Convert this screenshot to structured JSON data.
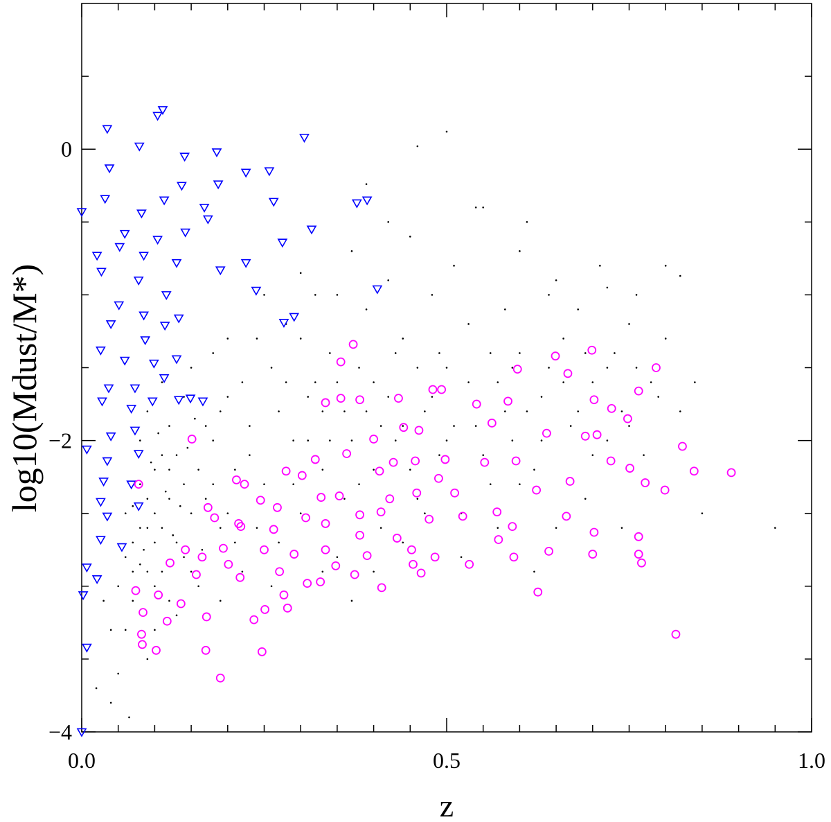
{
  "chart_data": {
    "type": "scatter",
    "xlabel": "z",
    "ylabel": "log10(Mdust/M*)",
    "xlim": [
      0,
      1
    ],
    "ylim": [
      -4,
      1
    ],
    "xticks": [
      {
        "value": 0,
        "label": "0.0"
      },
      0.5,
      {
        "value": 1,
        "label": "1.0"
      }
    ],
    "yticks": [
      {
        "value": -4,
        "label": "−4"
      },
      {
        "value": -2,
        "label": "−2"
      },
      0
    ],
    "xminorticks": [
      0.05,
      0.1,
      0.15,
      0.2,
      0.25,
      0.3,
      0.35,
      0.4,
      0.45,
      0.55,
      0.6,
      0.65,
      0.7,
      0.75,
      0.8,
      0.85,
      0.9,
      0.95
    ],
    "yminorticks": [
      -3.5,
      -3,
      -2.5,
      -1.5,
      -1,
      -0.5,
      0.5
    ],
    "series": [
      {
        "color": "#000000",
        "marker": "dot",
        "x": [
          0.06,
          0.07,
          0.08,
          0.09,
          0.07,
          0.08,
          0.09,
          0.1,
          0.11,
          0.12,
          0.1,
          0.11,
          0.13,
          0.14,
          0.12,
          0.15,
          0.16,
          0.14,
          0.13,
          0.15,
          0.08,
          0.09,
          0.07,
          0.06,
          0.05,
          0.04,
          0.02,
          0.03,
          0.065,
          0.09,
          0.1,
          0.085,
          0.095,
          0.105,
          0.115,
          0.125,
          0.135,
          0.145,
          0.155,
          0.165,
          0.17,
          0.18,
          0.19,
          0.2,
          0.21,
          0.22,
          0.18,
          0.2,
          0.16,
          0.19,
          0.23,
          0.25,
          0.26,
          0.27,
          0.28,
          0.29,
          0.3,
          0.31,
          0.32,
          0.33,
          0.34,
          0.35,
          0.36,
          0.37,
          0.38,
          0.39,
          0.4,
          0.41,
          0.42,
          0.43,
          0.44,
          0.45,
          0.46,
          0.47,
          0.48,
          0.49,
          0.5,
          0.51,
          0.52,
          0.53,
          0.54,
          0.55,
          0.56,
          0.57,
          0.58,
          0.59,
          0.6,
          0.61,
          0.62,
          0.63,
          0.64,
          0.65,
          0.66,
          0.67,
          0.68,
          0.69,
          0.7,
          0.71,
          0.72,
          0.73,
          0.74,
          0.75,
          0.76,
          0.77,
          0.78,
          0.8,
          0.82,
          0.85,
          0.82,
          0.76,
          0.74,
          0.46,
          0.5,
          0.39,
          0.54,
          0.42,
          0.3,
          0.28,
          0.25,
          0.24,
          0.26,
          0.33,
          0.37,
          0.4,
          0.44,
          0.47,
          0.52,
          0.57,
          0.62,
          0.3,
          0.35,
          0.34,
          0.36,
          0.38,
          0.41,
          0.43,
          0.45,
          0.48,
          0.5,
          0.53,
          0.55,
          0.58,
          0.6,
          0.63,
          0.66,
          0.68,
          0.7,
          0.72,
          0.22,
          0.23,
          0.24,
          0.27,
          0.29,
          0.31,
          0.32,
          0.33,
          0.35,
          0.37,
          0.39,
          0.4,
          0.42,
          0.44,
          0.46,
          0.49,
          0.51,
          0.56,
          0.59,
          0.61,
          0.64,
          0.69,
          0.75,
          0.79,
          0.84,
          0.95,
          0.8,
          0.72,
          0.65,
          0.6,
          0.1,
          0.11,
          0.12,
          0.13,
          0.14,
          0.15,
          0.1,
          0.09,
          0.08,
          0.11,
          0.12,
          0.17,
          0.18,
          0.2,
          0.21,
          0.19,
          0.07,
          0.06,
          0.05,
          0.04
        ],
        "values": [
          -2.5,
          -2.7,
          -2.3,
          -2.9,
          -3.1,
          -2.0,
          -1.8,
          -2.2,
          -2.6,
          -2.4,
          -3.0,
          -1.6,
          -2.1,
          -2.8,
          -1.9,
          -2.5,
          -2.2,
          -1.7,
          -3.2,
          -1.5,
          -2.6,
          -2.4,
          -2.9,
          -3.3,
          -3.6,
          -3.8,
          -3.7,
          -3.1,
          -3.9,
          -3.5,
          -3.3,
          -2.75,
          -2.15,
          -1.95,
          -2.35,
          -2.65,
          -2.45,
          -2.05,
          -1.85,
          -2.75,
          -2.4,
          -2.0,
          -2.6,
          -1.7,
          -2.2,
          -2.9,
          -1.4,
          -1.3,
          -3.0,
          -3.1,
          -1.9,
          -2.3,
          -1.5,
          -2.7,
          -1.2,
          -2.0,
          -2.5,
          -1.7,
          -1.0,
          -2.2,
          -1.4,
          -2.8,
          -1.8,
          -0.7,
          -2.3,
          -1.1,
          -1.6,
          -2.6,
          -0.9,
          -2.0,
          -1.3,
          -0.6,
          -2.4,
          -1.8,
          -1.0,
          -2.1,
          -1.5,
          -0.8,
          -2.5,
          -1.2,
          -1.9,
          -0.4,
          -2.3,
          -1.6,
          -1.1,
          -2.0,
          -1.4,
          -0.5,
          -2.2,
          -1.7,
          -1.0,
          -2.6,
          -1.3,
          -1.9,
          -1.1,
          -2.4,
          -1.6,
          -0.8,
          -2.0,
          -1.4,
          -1.8,
          -1.2,
          -1.0,
          -2.1,
          -1.6,
          -1.3,
          -1.8,
          -2.5,
          -0.87,
          -1.5,
          -2.6,
          0.02,
          0.12,
          -0.24,
          -0.4,
          -0.5,
          -0.85,
          -1.6,
          -1.0,
          -2.6,
          -3.0,
          -2.9,
          -3.1,
          -2.9,
          -2.7,
          -2.5,
          -2.8,
          -2.6,
          -2.9,
          -1.3,
          -1.0,
          -2.0,
          -2.4,
          -1.5,
          -1.9,
          -1.4,
          -2.2,
          -1.7,
          -2.0,
          -1.6,
          -2.1,
          -1.8,
          -2.3,
          -2.0,
          -1.6,
          -1.8,
          -2.1,
          -1.5,
          -1.6,
          -2.1,
          -1.3,
          -1.8,
          -2.3,
          -2.0,
          -1.6,
          -1.8,
          -1.6,
          -2.0,
          -1.8,
          -2.2,
          -1.7,
          -1.9,
          -1.5,
          -1.4,
          -1.9,
          -1.4,
          -1.5,
          -1.8,
          -1.5,
          -1.4,
          -1.9,
          -1.7,
          -1.6,
          -2.6,
          -0.8,
          -0.95,
          -0.9,
          -0.7,
          -2.5,
          -2.9,
          -2.2,
          -2.7,
          -2.3,
          -2.9,
          -2.7,
          -2.6,
          -2.85,
          -2.1,
          -3.1,
          -1.9,
          -2.3,
          -2.5,
          -2.7,
          -1.8,
          -2.45,
          -2.8,
          -3.0,
          -3.3
        ]
      },
      {
        "color": "#0000ff",
        "marker": "triangle-down",
        "x": [
          0.0,
          0.035,
          0.079,
          0.111,
          0.104,
          0.305,
          0.185,
          0.038,
          0.141,
          0.113,
          0.032,
          0.082,
          0.137,
          0.187,
          0.225,
          0.257,
          0.263,
          0.168,
          0.377,
          0.391,
          0.315,
          0.059,
          0.104,
          0.142,
          0.173,
          0.021,
          0.052,
          0.085,
          0.13,
          0.19,
          0.225,
          0.275,
          0.239,
          0.027,
          0.078,
          0.116,
          0.051,
          0.085,
          0.133,
          0.277,
          0.405,
          0.291,
          0.04,
          0.114,
          0.087,
          0.026,
          0.059,
          0.099,
          0.13,
          0.037,
          0.073,
          0.113,
          0.028,
          0.068,
          0.097,
          0.133,
          0.166,
          0.149,
          0.007,
          0.04,
          0.073,
          0.035,
          0.078,
          0.03,
          0.068,
          0.026,
          0.078,
          0.035,
          0.026,
          0.055,
          0.007,
          0.021,
          0.002,
          0.007,
          0.0
        ],
        "values": [
          -0.43,
          0.14,
          0.02,
          0.27,
          0.23,
          0.08,
          -0.02,
          -0.13,
          -0.05,
          -0.35,
          -0.34,
          -0.44,
          -0.25,
          -0.24,
          -0.16,
          -0.15,
          -0.36,
          -0.4,
          -0.37,
          -0.35,
          -0.55,
          -0.58,
          -0.62,
          -0.57,
          -0.48,
          -0.73,
          -0.67,
          -0.73,
          -0.78,
          -0.83,
          -0.78,
          -0.64,
          -0.97,
          -0.84,
          -0.9,
          -1.0,
          -1.07,
          -1.14,
          -1.16,
          -1.19,
          -0.96,
          -1.15,
          -1.2,
          -1.21,
          -1.31,
          -1.38,
          -1.45,
          -1.47,
          -1.44,
          -1.64,
          -1.64,
          -1.57,
          -1.73,
          -1.78,
          -1.73,
          -1.72,
          -1.73,
          -1.71,
          -2.06,
          -1.97,
          -1.93,
          -2.14,
          -2.09,
          -2.28,
          -2.3,
          -2.42,
          -2.45,
          -2.52,
          -2.68,
          -2.73,
          -2.87,
          -2.95,
          -3.06,
          -3.42,
          -4.0
        ]
      },
      {
        "color": "#ff00ff",
        "marker": "circle",
        "x": [
          0.372,
          0.355,
          0.699,
          0.649,
          0.787,
          0.597,
          0.666,
          0.481,
          0.493,
          0.434,
          0.584,
          0.541,
          0.702,
          0.763,
          0.726,
          0.748,
          0.355,
          0.334,
          0.381,
          0.441,
          0.462,
          0.562,
          0.637,
          0.69,
          0.706,
          0.823,
          0.839,
          0.89,
          0.772,
          0.799,
          0.725,
          0.751,
          0.151,
          0.4,
          0.363,
          0.32,
          0.427,
          0.457,
          0.498,
          0.552,
          0.595,
          0.28,
          0.302,
          0.408,
          0.489,
          0.511,
          0.212,
          0.223,
          0.078,
          0.623,
          0.669,
          0.245,
          0.328,
          0.353,
          0.41,
          0.459,
          0.569,
          0.173,
          0.215,
          0.268,
          0.307,
          0.381,
          0.422,
          0.476,
          0.522,
          0.59,
          0.664,
          0.702,
          0.763,
          0.182,
          0.218,
          0.263,
          0.334,
          0.381,
          0.432,
          0.142,
          0.194,
          0.25,
          0.291,
          0.334,
          0.391,
          0.452,
          0.484,
          0.571,
          0.592,
          0.64,
          0.7,
          0.763,
          0.767,
          0.121,
          0.165,
          0.201,
          0.271,
          0.348,
          0.374,
          0.454,
          0.465,
          0.531,
          0.157,
          0.217,
          0.309,
          0.327,
          0.411,
          0.625,
          0.074,
          0.105,
          0.136,
          0.277,
          0.251,
          0.282,
          0.084,
          0.117,
          0.171,
          0.236,
          0.082,
          0.083,
          0.102,
          0.17,
          0.247,
          0.814,
          0.19
        ],
        "values": [
          -1.34,
          -1.46,
          -1.38,
          -1.42,
          -1.5,
          -1.51,
          -1.54,
          -1.65,
          -1.65,
          -1.71,
          -1.73,
          -1.75,
          -1.72,
          -1.66,
          -1.78,
          -1.85,
          -1.71,
          -1.74,
          -1.72,
          -1.91,
          -1.93,
          -1.88,
          -1.95,
          -1.97,
          -1.96,
          -2.04,
          -2.21,
          -2.22,
          -2.29,
          -2.34,
          -2.14,
          -2.19,
          -1.99,
          -1.99,
          -2.09,
          -2.13,
          -2.15,
          -2.14,
          -2.13,
          -2.15,
          -2.14,
          -2.21,
          -2.24,
          -2.21,
          -2.26,
          -2.36,
          -2.27,
          -2.3,
          -2.3,
          -2.34,
          -2.28,
          -2.41,
          -2.39,
          -2.38,
          -2.49,
          -2.36,
          -2.49,
          -2.46,
          -2.57,
          -2.46,
          -2.53,
          -2.51,
          -2.4,
          -2.54,
          -2.52,
          -2.59,
          -2.52,
          -2.63,
          -2.66,
          -2.53,
          -2.59,
          -2.61,
          -2.57,
          -2.65,
          -2.67,
          -2.75,
          -2.74,
          -2.75,
          -2.78,
          -2.75,
          -2.79,
          -2.75,
          -2.8,
          -2.68,
          -2.8,
          -2.76,
          -2.78,
          -2.78,
          -2.84,
          -2.84,
          -2.8,
          -2.85,
          -2.9,
          -2.86,
          -2.92,
          -2.85,
          -2.91,
          -2.85,
          -2.92,
          -2.94,
          -2.98,
          -2.97,
          -3.01,
          -3.04,
          -3.03,
          -3.06,
          -3.12,
          -3.06,
          -3.16,
          -3.15,
          -3.18,
          -3.24,
          -3.21,
          -3.23,
          -3.33,
          -3.4,
          -3.44,
          -3.44,
          -3.45,
          -3.33,
          -3.63
        ]
      }
    ]
  }
}
